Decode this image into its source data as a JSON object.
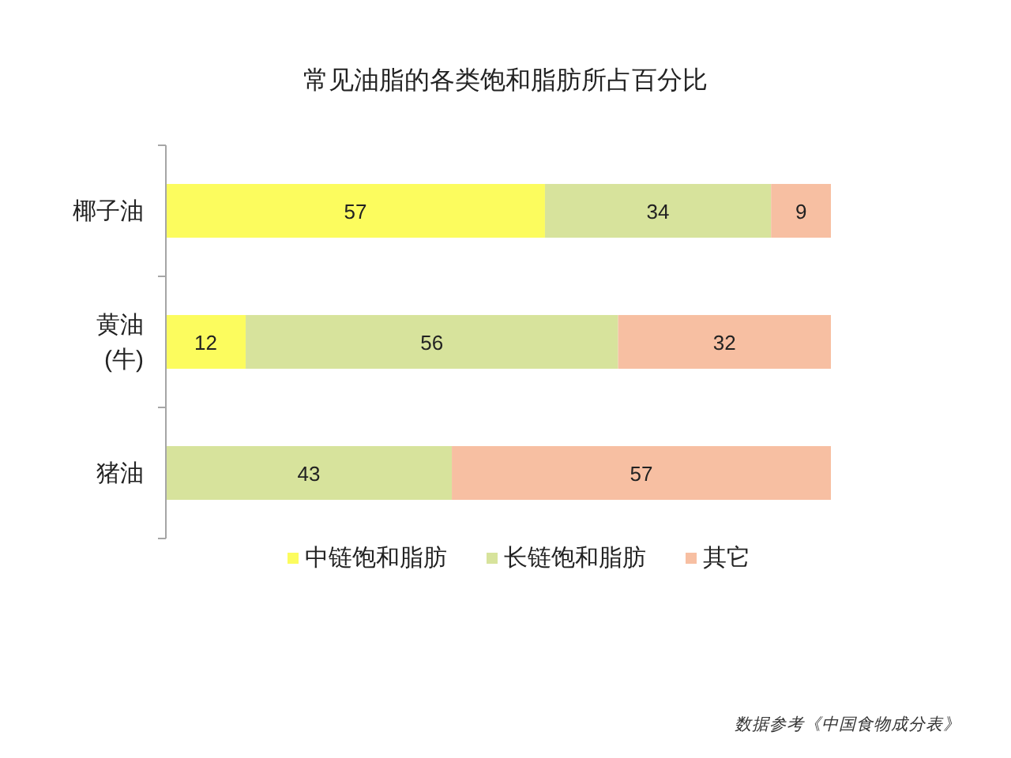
{
  "chart_data": {
    "type": "bar",
    "orientation": "horizontal",
    "stacked": true,
    "title": "常见油脂的各类饱和脂肪所占百分比",
    "categories": [
      "椰子油",
      "黄油\n(牛)",
      "猪油"
    ],
    "series": [
      {
        "name": "中链饱和脂肪",
        "color": "#fcfc5e",
        "values": [
          57,
          12,
          null
        ]
      },
      {
        "name": "长链饱和脂肪",
        "color": "#d7e39c",
        "values": [
          34,
          56,
          43
        ]
      },
      {
        "name": "其它",
        "color": "#f7bfa2",
        "values": [
          9,
          32,
          57
        ]
      }
    ],
    "xlim": [
      0,
      100
    ],
    "tick_labels": "y",
    "data_labels": true,
    "legend": "bottom",
    "annotations": [
      "数据参考《中国食物成分表》"
    ]
  }
}
